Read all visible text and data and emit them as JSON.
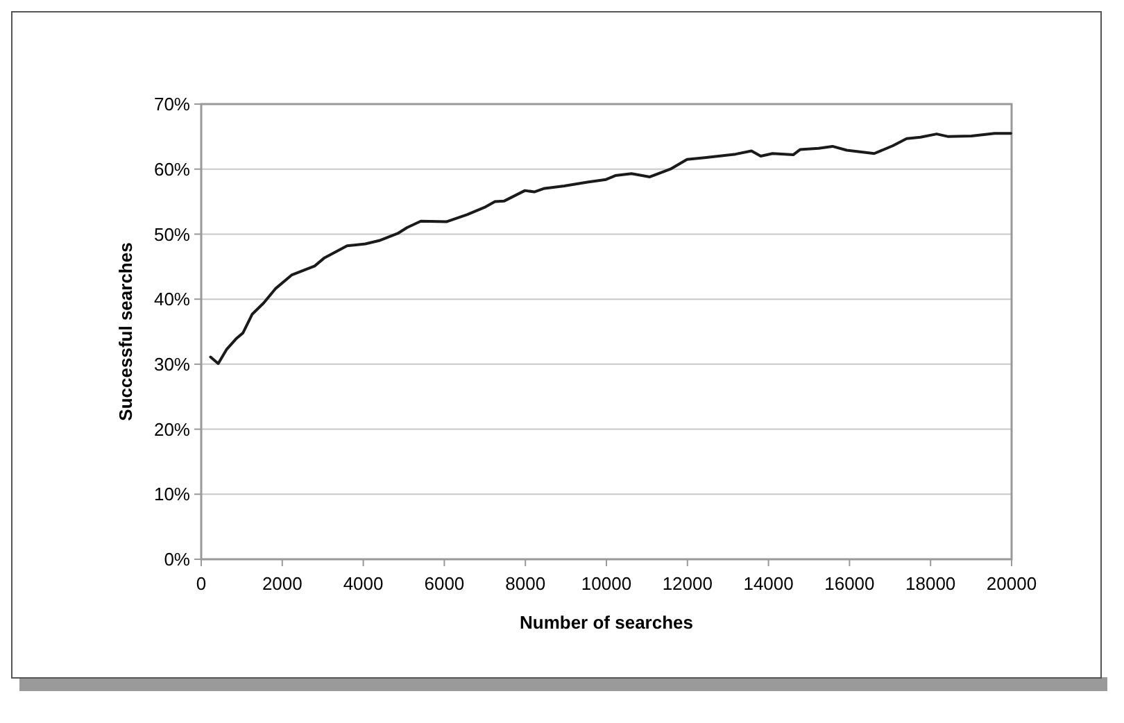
{
  "chart_data": {
    "type": "line",
    "xlabel": "Number of searches",
    "ylabel": "Successful searches",
    "x": [
      230,
      420,
      630,
      860,
      1030,
      1260,
      1540,
      1830,
      2230,
      2800,
      3030,
      3600,
      4050,
      4390,
      4850,
      5080,
      5420,
      6050,
      6560,
      7020,
      7250,
      7480,
      7990,
      8220,
      8450,
      8960,
      9530,
      9990,
      10220,
      10620,
      11070,
      11580,
      11990,
      12500,
      13190,
      13580,
      13810,
      14100,
      14610,
      14780,
      15240,
      15580,
      15930,
      16610,
      17070,
      17410,
      17750,
      18150,
      18440,
      19010,
      19580,
      19980
    ],
    "series": [
      {
        "color": "#1a1a1a",
        "values": [
          31.1,
          30.1,
          32.3,
          33.9,
          34.8,
          37.7,
          39.4,
          41.6,
          43.7,
          45.1,
          46.3,
          48.2,
          48.5,
          49.0,
          50.1,
          51.0,
          52.0,
          51.9,
          53.0,
          54.2,
          55.0,
          55.1,
          56.7,
          56.5,
          57.0,
          57.4,
          58.0,
          58.4,
          59.0,
          59.3,
          58.8,
          60.0,
          61.5,
          61.8,
          62.3,
          62.8,
          62.0,
          62.4,
          62.2,
          63.0,
          63.2,
          63.5,
          62.9,
          62.4,
          63.6,
          64.7,
          64.9,
          65.4,
          65.0,
          65.1,
          65.5,
          65.5
        ]
      }
    ],
    "xlim": [
      0,
      20000
    ],
    "xticks": [
      0,
      2000,
      4000,
      6000,
      8000,
      10000,
      12000,
      14000,
      16000,
      18000,
      20000
    ],
    "ylim": [
      0,
      70
    ],
    "yticks": [
      {
        "value": 0,
        "label": "0%"
      },
      {
        "value": 10,
        "label": "10%"
      },
      {
        "value": 20,
        "label": "20%"
      },
      {
        "value": 30,
        "label": "30%"
      },
      {
        "value": 40,
        "label": "40%"
      },
      {
        "value": 50,
        "label": "50%"
      },
      {
        "value": 60,
        "label": "60%"
      },
      {
        "value": 70,
        "label": "70%"
      }
    ],
    "grid": "y",
    "marker": "none",
    "line_style": "solid"
  }
}
